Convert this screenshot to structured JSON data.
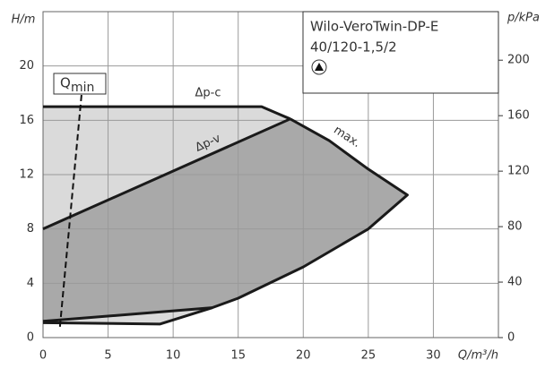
{
  "chart_data": {
    "type": "line",
    "title": "Wilo-VeroTwin-DP-E",
    "subtitle": "40/120-1,5/2",
    "x_label": "Q/m³/h",
    "y_label": "H/m",
    "y2_label": "p/kPa",
    "xlim": [
      0,
      35
    ],
    "xticks": [
      0,
      5,
      10,
      15,
      20,
      25,
      30
    ],
    "ylim": [
      0,
      24
    ],
    "yticks": [
      0,
      4,
      8,
      12,
      16,
      20
    ],
    "y2lim": [
      0,
      235
    ],
    "y2ticks": [
      0,
      40,
      80,
      120,
      160,
      200
    ],
    "grid": true,
    "fills": [
      "#dadada",
      "#a9a9a9"
    ],
    "series": [
      {
        "name": "Δp-c",
        "color": "#1a1a1a",
        "x": [
          0,
          16.8,
          19
        ],
        "values": [
          17,
          17,
          16.1
        ]
      },
      {
        "name": "Δp-v",
        "color": "#1a1a1a",
        "x": [
          0,
          19,
          null,
          0,
          13
        ],
        "values": [
          8,
          16.1,
          null,
          1.2,
          2.2
        ]
      },
      {
        "name": "max.",
        "color": "#1a1a1a",
        "x": [
          19,
          22,
          25,
          28,
          25,
          20,
          15,
          13,
          9,
          0
        ],
        "values": [
          16.1,
          14.5,
          12.4,
          10.5,
          8,
          5.2,
          2.9,
          2.2,
          1.0,
          1.1
        ]
      }
    ],
    "qmin": {
      "label": "Q",
      "sub": "min",
      "x": [
        1.3,
        3.0
      ],
      "values": [
        0.8,
        18.3
      ]
    }
  }
}
